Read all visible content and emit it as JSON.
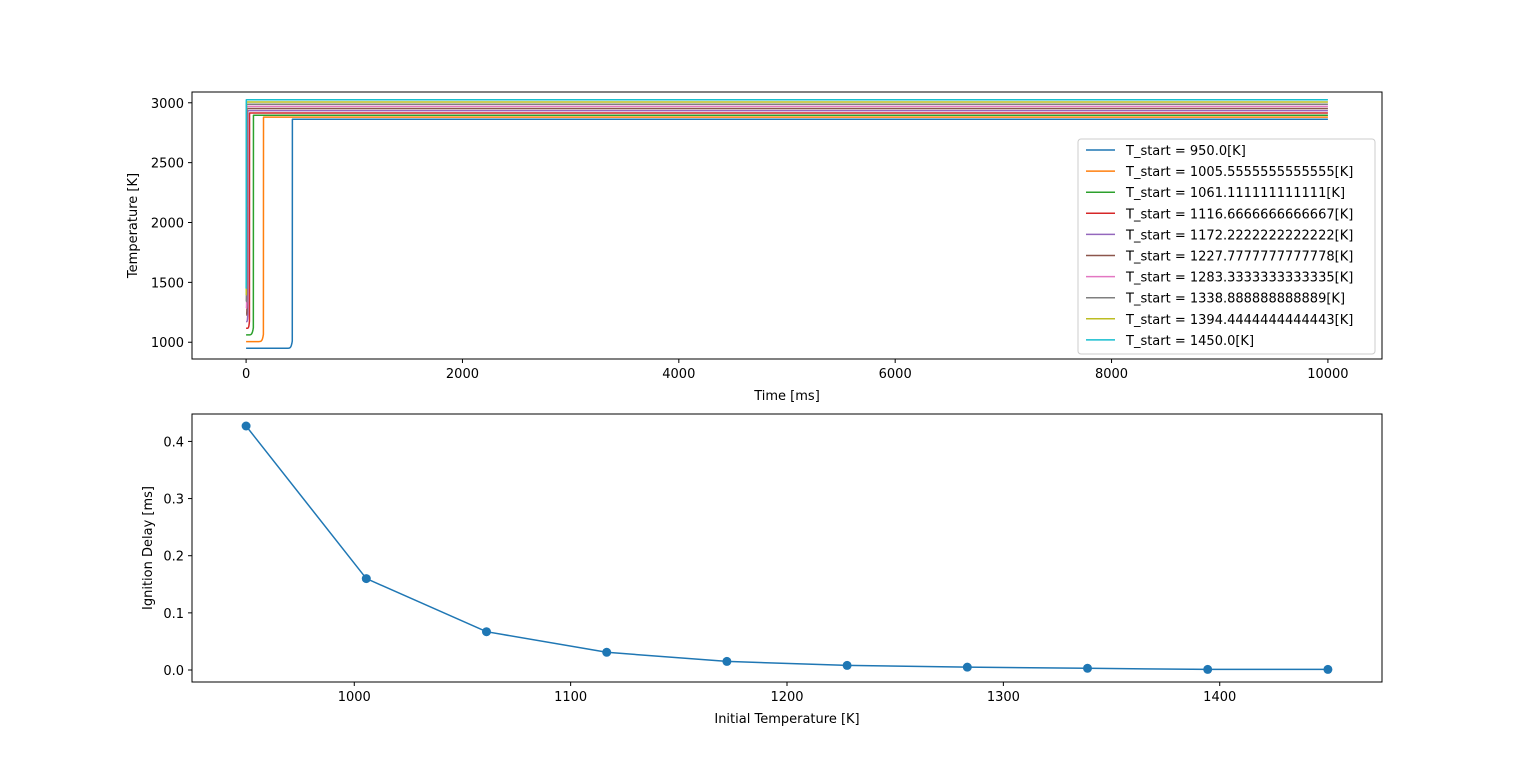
{
  "chart_data": [
    {
      "type": "line",
      "xlabel": "Time [ms]",
      "ylabel": "Temperature [K]",
      "xlim": [
        -500,
        10500
      ],
      "ylim": [
        860,
        3090
      ],
      "xticks": [
        0,
        2000,
        4000,
        6000,
        8000,
        10000
      ],
      "yticks": [
        1000,
        1500,
        2000,
        2500,
        3000
      ],
      "grid": false,
      "legend_position": "center-right",
      "series": [
        {
          "name": "T_start = 950.0[K]",
          "color": "#1f77b4",
          "initial": 950,
          "final": 2862,
          "ignition_time": 427,
          "x_end": 10000
        },
        {
          "name": "T_start = 1005.5555555555555[K]",
          "color": "#ff7f0e",
          "initial": 1005.56,
          "final": 2880,
          "ignition_time": 160,
          "x_end": 10000
        },
        {
          "name": "T_start = 1061.111111111111[K]",
          "color": "#2ca02c",
          "initial": 1061.11,
          "final": 2896,
          "ignition_time": 67,
          "x_end": 10000
        },
        {
          "name": "T_start = 1116.6666666666667[K]",
          "color": "#d62728",
          "initial": 1116.67,
          "final": 2915,
          "ignition_time": 31,
          "x_end": 10000
        },
        {
          "name": "T_start = 1172.2222222222222[K]",
          "color": "#9467bd",
          "initial": 1172.22,
          "final": 2934,
          "ignition_time": 15,
          "x_end": 10000
        },
        {
          "name": "T_start = 1227.7777777777778[K]",
          "color": "#8c564b",
          "initial": 1227.78,
          "final": 2952,
          "ignition_time": 8,
          "x_end": 10000
        },
        {
          "name": "T_start = 1283.3333333333335[K]",
          "color": "#e377c2",
          "initial": 1283.33,
          "final": 2970,
          "ignition_time": 5,
          "x_end": 10000
        },
        {
          "name": "T_start = 1338.888888888889[K]",
          "color": "#7f7f7f",
          "initial": 1338.89,
          "final": 2988,
          "ignition_time": 3,
          "x_end": 10000
        },
        {
          "name": "T_start = 1394.4444444444443[K]",
          "color": "#bcbd22",
          "initial": 1394.44,
          "final": 3006,
          "ignition_time": 2,
          "x_end": 10000
        },
        {
          "name": "T_start = 1450.0[K]",
          "color": "#17becf",
          "initial": 1450,
          "final": 3025,
          "ignition_time": 1,
          "x_end": 10000
        }
      ]
    },
    {
      "type": "line",
      "markers": true,
      "xlabel": "Initial Temperature [K]",
      "ylabel": "Ignition Delay [ms]",
      "xlim": [
        925,
        1475
      ],
      "ylim": [
        -0.021,
        0.448
      ],
      "xticks": [
        1000,
        1100,
        1200,
        1300,
        1400
      ],
      "yticks": [
        0.0,
        0.1,
        0.2,
        0.3,
        0.4
      ],
      "ytick_labels": [
        "0.0",
        "0.1",
        "0.2",
        "0.3",
        "0.4"
      ],
      "grid": false,
      "color": "#1f77b4",
      "x": [
        950.0,
        1005.56,
        1061.11,
        1116.67,
        1172.22,
        1227.78,
        1283.33,
        1338.89,
        1394.44,
        1450.0
      ],
      "y": [
        0.427,
        0.16,
        0.067,
        0.031,
        0.015,
        0.008,
        0.005,
        0.003,
        0.001,
        0.001
      ]
    }
  ]
}
